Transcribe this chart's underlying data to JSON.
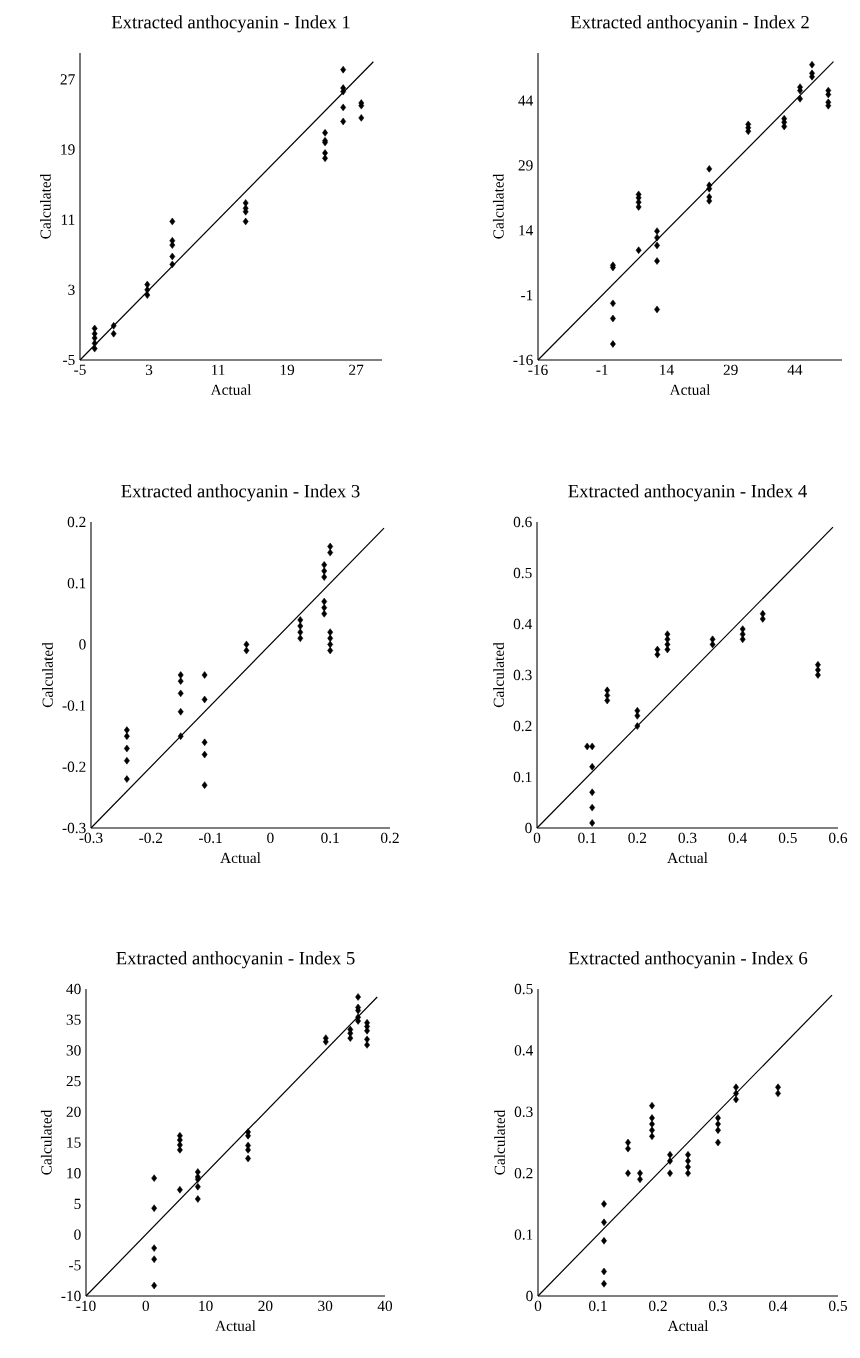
{
  "chart_data": [
    {
      "type": "scatter",
      "title": "Extracted anthocyanin - Index 1",
      "xlabel": "Actual",
      "ylabel": "Calculated",
      "xlim": [
        -5,
        30
      ],
      "ylim": [
        -5,
        30
      ],
      "xticks": [
        -5,
        3,
        11,
        19,
        27
      ],
      "yticks": [
        -5,
        3,
        11,
        19,
        27
      ],
      "series": [
        {
          "type": "scatter",
          "marker": "diamond",
          "color": "#000000",
          "x": [
            -3.3,
            -3.3,
            -3.3,
            -3.3,
            -3.3,
            -1.1,
            -1.1,
            2.8,
            2.8,
            2.8,
            5.7,
            5.7,
            5.7,
            5.7,
            5.7,
            14.2,
            14.2,
            14.2,
            14.2,
            23.4,
            23.4,
            23.4,
            23.4,
            23.4,
            25.5,
            25.5,
            25.5,
            25.5,
            25.5,
            27.6,
            27.6,
            27.6
          ],
          "values": [
            -1.4,
            -2.0,
            -2.5,
            -3.1,
            -3.7,
            -1.1,
            -2.0,
            3.6,
            3.0,
            2.4,
            10.8,
            8.6,
            8.1,
            6.8,
            5.9,
            12.9,
            12.3,
            11.9,
            10.8,
            20.9,
            20.0,
            19.8,
            18.6,
            18.0,
            28.1,
            26.0,
            25.6,
            23.8,
            22.2,
            24.3,
            24.0,
            22.6
          ]
        },
        {
          "type": "line",
          "marker": "none",
          "color": "#000000",
          "x": [
            -5,
            29
          ],
          "values": [
            -5,
            29
          ]
        }
      ]
    },
    {
      "type": "scatter",
      "title": "Extracted anthocyanin - Index 2",
      "xlabel": "Actual",
      "ylabel": "Calculated",
      "xlim": [
        -16,
        55
      ],
      "ylim": [
        -16,
        55
      ],
      "xticks": [
        -16,
        -1,
        14,
        29,
        44
      ],
      "yticks": [
        -16,
        -1,
        14,
        29,
        44
      ],
      "series": [
        {
          "type": "scatter",
          "marker": "diamond",
          "color": "#000000",
          "x": [
            1.5,
            1.5,
            1.5,
            1.5,
            1.5,
            7.5,
            7.5,
            7.5,
            7.5,
            7.5,
            11.8,
            11.8,
            11.8,
            11.8,
            11.8,
            24,
            24,
            24,
            24,
            24,
            33.1,
            33.1,
            33.1,
            41.5,
            41.5,
            41.5,
            45.2,
            45.2,
            45.2,
            48,
            48,
            48,
            51.8,
            51.8,
            51.8,
            51.8
          ],
          "values": [
            5.9,
            5.4,
            -2.9,
            -6.4,
            -12.3,
            22.3,
            21.5,
            20.5,
            19.4,
            9.4,
            13.8,
            12.3,
            10.5,
            6.9,
            -4.3,
            28.2,
            24.4,
            23.6,
            21.7,
            20.8,
            38.5,
            37.7,
            36.9,
            39.8,
            39.0,
            38.0,
            47.1,
            46.3,
            44.4,
            52.3,
            50.3,
            49.5,
            46.3,
            45.4,
            43.6,
            42.8
          ]
        },
        {
          "type": "line",
          "marker": "none",
          "color": "#000000",
          "x": [
            -16,
            53
          ],
          "values": [
            -16,
            53
          ]
        }
      ]
    },
    {
      "type": "scatter",
      "title": "Extracted anthocyanin - Index 3",
      "xlabel": "Actual",
      "ylabel": "Calculated",
      "xlim": [
        -0.3,
        0.2
      ],
      "ylim": [
        -0.3,
        0.2
      ],
      "xticks": [
        -0.3,
        -0.2,
        -0.1,
        0,
        0.1,
        0.2
      ],
      "yticks": [
        -0.3,
        -0.2,
        -0.1,
        0,
        0.1,
        0.2
      ],
      "series": [
        {
          "type": "scatter",
          "marker": "diamond",
          "color": "#000000",
          "x": [
            -0.24,
            -0.24,
            -0.24,
            -0.24,
            -0.24,
            -0.15,
            -0.15,
            -0.15,
            -0.15,
            -0.15,
            -0.11,
            -0.11,
            -0.11,
            -0.11,
            -0.11,
            -0.04,
            -0.04,
            0.05,
            0.05,
            0.05,
            0.05,
            0.09,
            0.09,
            0.09,
            0.09,
            0.09,
            0.09,
            0.1,
            0.1,
            0.1,
            0.1,
            0.1,
            0.1
          ],
          "values": [
            -0.14,
            -0.15,
            -0.17,
            -0.19,
            -0.22,
            -0.05,
            -0.06,
            -0.08,
            -0.11,
            -0.15,
            -0.05,
            -0.09,
            -0.16,
            -0.18,
            -0.23,
            0,
            -0.01,
            0.04,
            0.03,
            0.02,
            0.01,
            0.13,
            0.12,
            0.11,
            0.07,
            0.06,
            0.05,
            0.16,
            0.15,
            0.02,
            0.01,
            0,
            -0.01
          ]
        },
        {
          "type": "line",
          "marker": "none",
          "color": "#000000",
          "x": [
            -0.3,
            0.19
          ],
          "values": [
            -0.3,
            0.19
          ]
        }
      ]
    },
    {
      "type": "scatter",
      "title": "Extracted anthocyanin - Index 4",
      "xlabel": "Actual",
      "ylabel": "Calculated",
      "xlim": [
        0,
        0.6
      ],
      "ylim": [
        0,
        0.6
      ],
      "xticks": [
        0,
        0.1,
        0.2,
        0.3,
        0.4,
        0.5,
        0.6
      ],
      "yticks": [
        0,
        0.1,
        0.2,
        0.3,
        0.4,
        0.5,
        0.6
      ],
      "series": [
        {
          "type": "scatter",
          "marker": "diamond",
          "color": "#000000",
          "x": [
            0.1,
            0.11,
            0.11,
            0.11,
            0.11,
            0.11,
            0.14,
            0.14,
            0.14,
            0.2,
            0.2,
            0.2,
            0.24,
            0.24,
            0.26,
            0.26,
            0.26,
            0.26,
            0.35,
            0.35,
            0.41,
            0.41,
            0.41,
            0.45,
            0.45,
            0.56,
            0.56,
            0.56
          ],
          "values": [
            0.16,
            0.16,
            0.12,
            0.07,
            0.04,
            0.01,
            0.27,
            0.26,
            0.25,
            0.23,
            0.22,
            0.2,
            0.35,
            0.34,
            0.38,
            0.37,
            0.36,
            0.35,
            0.37,
            0.36,
            0.39,
            0.38,
            0.37,
            0.42,
            0.41,
            0.32,
            0.31,
            0.3
          ]
        },
        {
          "type": "line",
          "marker": "none",
          "color": "#000000",
          "x": [
            0,
            0.59
          ],
          "values": [
            0,
            0.59
          ]
        }
      ]
    },
    {
      "type": "scatter",
      "title": "Extracted anthocyanin - Index 5",
      "xlabel": "Actual",
      "ylabel": "Calculated",
      "xlim": [
        -10,
        40
      ],
      "ylim": [
        -10,
        40
      ],
      "xticks": [
        -10,
        0,
        10,
        20,
        30,
        40
      ],
      "yticks": [
        -10,
        -5,
        0,
        5,
        10,
        15,
        20,
        25,
        30,
        35,
        40
      ],
      "series": [
        {
          "type": "scatter",
          "marker": "diamond",
          "color": "#000000",
          "x": [
            1.4,
            1.4,
            1.4,
            1.4,
            1.4,
            5.7,
            5.7,
            5.7,
            5.7,
            5.7,
            8.7,
            8.7,
            8.7,
            8.7,
            8.7,
            17.1,
            17.1,
            17.1,
            17.1,
            17.1,
            30.1,
            30.1,
            34.2,
            34.2,
            34.2,
            35.5,
            35.5,
            35.5,
            35.5,
            35.5,
            37.0,
            37.0,
            37.0,
            37.0,
            37.0
          ],
          "values": [
            9.2,
            4.3,
            -2.2,
            -4.0,
            -8.3,
            16.1,
            15.4,
            14.6,
            13.8,
            7.3,
            10.2,
            9.4,
            9.0,
            7.8,
            5.8,
            16.7,
            16.1,
            14.5,
            13.8,
            12.4,
            32.0,
            31.4,
            33.4,
            32.8,
            32.0,
            38.7,
            37.0,
            36.5,
            35.4,
            34.8,
            34.5,
            33.9,
            33.2,
            31.8,
            30.9
          ]
        },
        {
          "type": "line",
          "marker": "none",
          "color": "#000000",
          "x": [
            -10,
            38.7
          ],
          "values": [
            -10,
            38.7
          ]
        }
      ]
    },
    {
      "type": "scatter",
      "title": "Extracted anthocyanin - Index 6",
      "xlabel": "Actual",
      "ylabel": "Calculated",
      "xlim": [
        0,
        0.5
      ],
      "ylim": [
        0,
        0.5
      ],
      "xticks": [
        0,
        0.1,
        0.2,
        0.3,
        0.4,
        0.5
      ],
      "yticks": [
        0,
        0.1,
        0.2,
        0.3,
        0.4,
        0.5
      ],
      "series": [
        {
          "type": "scatter",
          "marker": "diamond",
          "color": "#000000",
          "x": [
            0.11,
            0.11,
            0.11,
            0.11,
            0.11,
            0.15,
            0.15,
            0.15,
            0.17,
            0.17,
            0.19,
            0.19,
            0.19,
            0.19,
            0.19,
            0.22,
            0.22,
            0.22,
            0.25,
            0.25,
            0.25,
            0.25,
            0.3,
            0.3,
            0.3,
            0.3,
            0.33,
            0.33,
            0.33,
            0.4,
            0.4
          ],
          "values": [
            0.15,
            0.12,
            0.09,
            0.04,
            0.02,
            0.25,
            0.24,
            0.2,
            0.2,
            0.19,
            0.31,
            0.29,
            0.28,
            0.27,
            0.26,
            0.23,
            0.22,
            0.2,
            0.23,
            0.22,
            0.21,
            0.2,
            0.29,
            0.28,
            0.27,
            0.25,
            0.34,
            0.33,
            0.32,
            0.34,
            0.33
          ]
        },
        {
          "type": "line",
          "marker": "none",
          "color": "#000000",
          "x": [
            0,
            0.49
          ],
          "values": [
            0,
            0.49
          ]
        }
      ]
    }
  ]
}
